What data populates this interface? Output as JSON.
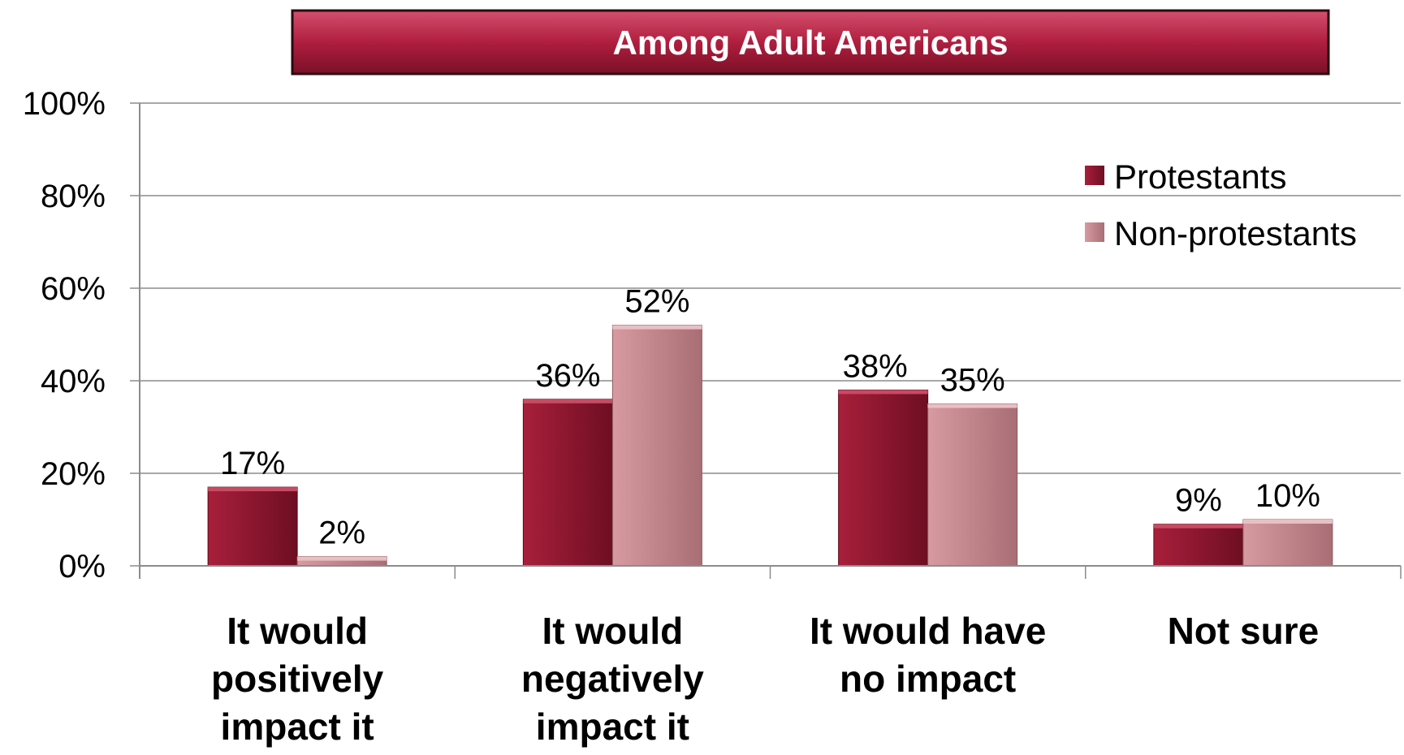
{
  "chart_data": {
    "type": "bar",
    "title": "Among Adult Americans",
    "categories": [
      [
        "It would",
        "positively",
        "impact it"
      ],
      [
        "It would",
        "negatively",
        "impact it"
      ],
      [
        "It would have",
        "no impact"
      ],
      [
        "Not sure"
      ]
    ],
    "series": [
      {
        "name": "Protestants",
        "values": [
          17,
          36,
          38,
          9
        ],
        "labels": [
          "17%",
          "36%",
          "38%",
          "9%"
        ],
        "color": "#8e1830"
      },
      {
        "name": "Non-protestants",
        "values": [
          2,
          52,
          35,
          10
        ],
        "labels": [
          "2%",
          "52%",
          "35%",
          "10%"
        ],
        "color": "#c48a8f"
      }
    ],
    "ylim": [
      0,
      100
    ],
    "yticks": [
      "0%",
      "20%",
      "40%",
      "60%",
      "80%",
      "100%"
    ],
    "grid": true,
    "legend": "top-right",
    "xlabel": "",
    "ylabel": ""
  }
}
